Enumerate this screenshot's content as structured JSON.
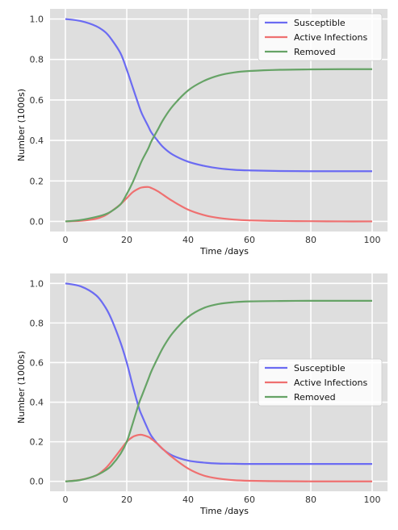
{
  "chart_data": [
    {
      "type": "line",
      "xlabel": "Time /days",
      "ylabel": "Number (1000s)",
      "xlim": [
        -5,
        105
      ],
      "ylim": [
        -0.05,
        1.05
      ],
      "xticks": [
        "0",
        "20",
        "40",
        "60",
        "80",
        "100"
      ],
      "yticks": [
        "0.0",
        "0.2",
        "0.4",
        "0.6",
        "0.8",
        "1.0"
      ],
      "grid": true,
      "legend_position": "top-right",
      "x": [
        0,
        5,
        10,
        13,
        15,
        18,
        20,
        22,
        24,
        25,
        27,
        28,
        30,
        32,
        35,
        40,
        45,
        50,
        55,
        60,
        70,
        80,
        90,
        100
      ],
      "series": [
        {
          "name": "Susceptible",
          "color": "#6b6bf2",
          "values": [
            1.0,
            0.99,
            0.965,
            0.935,
            0.9,
            0.83,
            0.75,
            0.66,
            0.57,
            0.53,
            0.47,
            0.44,
            0.4,
            0.365,
            0.33,
            0.295,
            0.275,
            0.262,
            0.255,
            0.252,
            0.249,
            0.248,
            0.248,
            0.248
          ]
        },
        {
          "name": "Active Infections",
          "color": "#ef7070",
          "values": [
            0.0,
            0.003,
            0.013,
            0.03,
            0.05,
            0.085,
            0.115,
            0.145,
            0.163,
            0.168,
            0.17,
            0.165,
            0.15,
            0.13,
            0.1,
            0.058,
            0.032,
            0.017,
            0.009,
            0.005,
            0.002,
            0.001,
            0.0,
            0.0
          ]
        },
        {
          "name": "Removed",
          "color": "#66a366",
          "values": [
            0.0,
            0.007,
            0.022,
            0.035,
            0.05,
            0.085,
            0.135,
            0.195,
            0.267,
            0.302,
            0.36,
            0.395,
            0.45,
            0.505,
            0.57,
            0.647,
            0.693,
            0.721,
            0.736,
            0.743,
            0.749,
            0.751,
            0.752,
            0.752
          ]
        }
      ]
    },
    {
      "type": "line",
      "xlabel": "Time /days",
      "ylabel": "Number (1000s)",
      "xlim": [
        -5,
        105
      ],
      "ylim": [
        -0.05,
        1.05
      ],
      "xticks": [
        "0",
        "20",
        "40",
        "60",
        "80",
        "100"
      ],
      "yticks": [
        "0.0",
        "0.2",
        "0.4",
        "0.6",
        "0.8",
        "1.0"
      ],
      "grid": true,
      "legend_position": "center-right",
      "x": [
        0,
        5,
        10,
        13,
        15,
        18,
        20,
        22,
        24,
        25,
        27,
        28,
        30,
        32,
        35,
        40,
        45,
        50,
        55,
        60,
        70,
        80,
        90,
        100
      ],
      "series": [
        {
          "name": "Susceptible",
          "color": "#6b6bf2",
          "values": [
            1.0,
            0.985,
            0.94,
            0.88,
            0.82,
            0.7,
            0.6,
            0.48,
            0.37,
            0.33,
            0.26,
            0.23,
            0.19,
            0.16,
            0.13,
            0.105,
            0.095,
            0.09,
            0.089,
            0.088,
            0.088,
            0.088,
            0.088,
            0.088
          ]
        },
        {
          "name": "Active Infections",
          "color": "#ef7070",
          "values": [
            0.0,
            0.008,
            0.03,
            0.065,
            0.1,
            0.16,
            0.2,
            0.225,
            0.235,
            0.235,
            0.225,
            0.215,
            0.19,
            0.16,
            0.12,
            0.065,
            0.03,
            0.014,
            0.006,
            0.003,
            0.001,
            0.0,
            0.0,
            0.0
          ]
        },
        {
          "name": "Removed",
          "color": "#66a366",
          "values": [
            0.0,
            0.007,
            0.03,
            0.055,
            0.08,
            0.14,
            0.2,
            0.295,
            0.395,
            0.435,
            0.515,
            0.555,
            0.62,
            0.68,
            0.75,
            0.83,
            0.875,
            0.896,
            0.905,
            0.909,
            0.911,
            0.912,
            0.912,
            0.912
          ]
        }
      ]
    }
  ]
}
